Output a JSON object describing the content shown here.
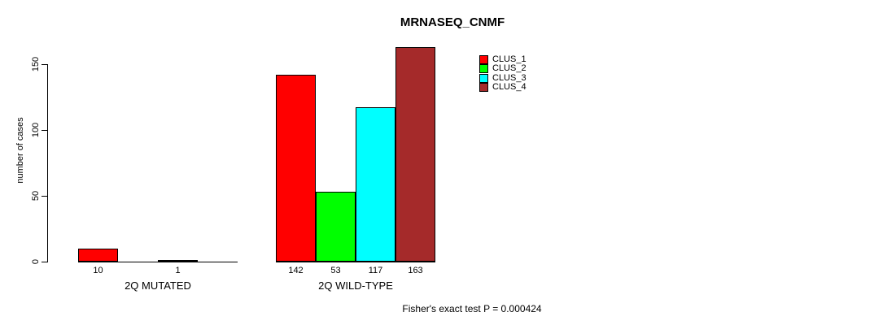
{
  "title": "MRNASEQ_CNMF",
  "y_axis": {
    "label": "number of cases",
    "ticks": [
      "0",
      "50",
      "100",
      "150"
    ]
  },
  "footer": "Fisher's exact test P = 0.000424",
  "legend": {
    "items": [
      {
        "label": "CLUS_1",
        "color": "#FF0000"
      },
      {
        "label": "CLUS_2",
        "color": "#00FF00"
      },
      {
        "label": "CLUS_3",
        "color": "#00FFFF"
      },
      {
        "label": "CLUS_4",
        "color": "#A52A2A"
      }
    ]
  },
  "chart_data": {
    "type": "bar",
    "title": "MRNASEQ_CNMF",
    "ylabel": "number of cases",
    "ylim": [
      0,
      163
    ],
    "yticks": [
      0,
      50,
      100,
      150
    ],
    "grid": false,
    "legend_position": "top-right",
    "series": [
      "CLUS_1",
      "CLUS_2",
      "CLUS_3",
      "CLUS_4"
    ],
    "series_colors": [
      "#FF0000",
      "#00FF00",
      "#00FFFF",
      "#A52A2A"
    ],
    "groups": [
      {
        "category": "2Q MUTATED",
        "values": [
          10,
          0,
          1,
          0
        ],
        "bar_labels": [
          "10",
          "",
          "1",
          ""
        ]
      },
      {
        "category": "2Q WILD-TYPE",
        "values": [
          142,
          53,
          117,
          163
        ],
        "bar_labels": [
          "142",
          "53",
          "117",
          "163"
        ]
      }
    ],
    "annotation": "Fisher's exact test P = 0.000424"
  }
}
